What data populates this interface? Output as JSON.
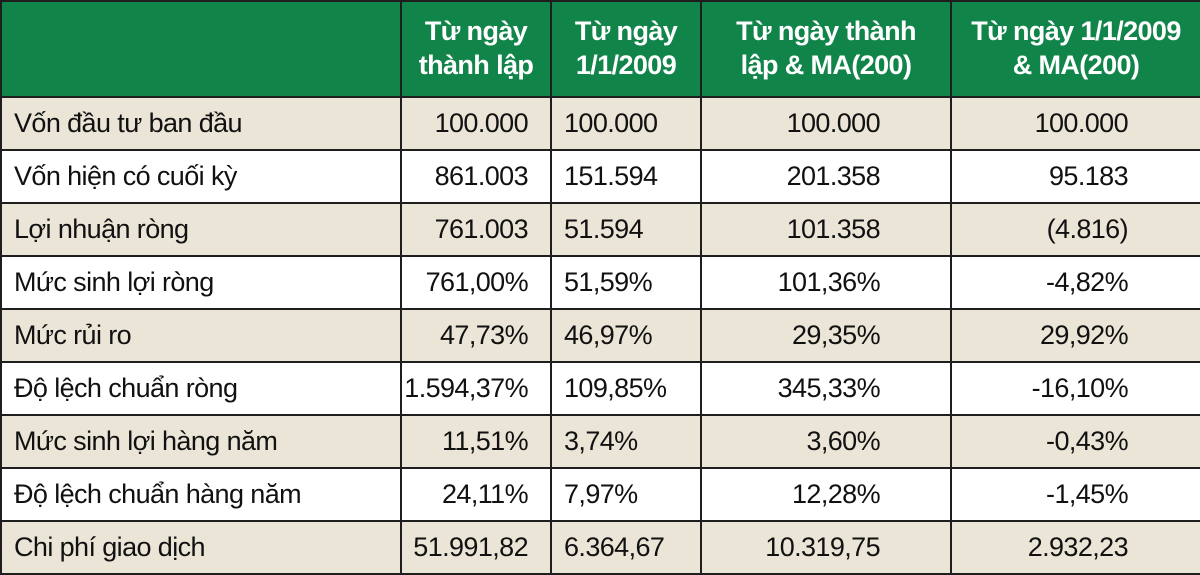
{
  "chart_data": {
    "type": "table",
    "columns": [
      [
        "Từ ngày",
        "thành lập"
      ],
      [
        "Từ ngày",
        "1/1/2009"
      ],
      [
        "Từ ngày thành",
        "lập & MA(200)"
      ],
      [
        "Từ ngày 1/1/2009",
        "& MA(200)"
      ]
    ],
    "rows": [
      {
        "label": "Vốn đầu tư ban đầu",
        "values": [
          "100.000",
          "100.000",
          "100.000",
          "100.000"
        ]
      },
      {
        "label": "Vốn hiện có cuối kỳ",
        "values": [
          "861.003",
          "151.594",
          "201.358",
          "95.183"
        ]
      },
      {
        "label": "Lợi nhuận ròng",
        "values": [
          "761.003",
          "51.594",
          "101.358",
          "(4.816)"
        ]
      },
      {
        "label": "Mức sinh lợi ròng",
        "values": [
          "761,00%",
          "51,59%",
          "101,36%",
          "-4,82%"
        ]
      },
      {
        "label": "Mức rủi ro",
        "values": [
          "47,73%",
          "46,97%",
          "29,35%",
          "29,92%"
        ]
      },
      {
        "label": "Độ lệch chuẩn ròng",
        "values": [
          "1.594,37%",
          "109,85%",
          "345,33%",
          "-16,10%"
        ]
      },
      {
        "label": "Mức sinh lợi hàng năm",
        "values": [
          "11,51%",
          "3,74%",
          "3,60%",
          "-0,43%"
        ]
      },
      {
        "label": "Độ lệch chuẩn hàng năm",
        "values": [
          "24,11%",
          "7,97%",
          "12,28%",
          "-1,45%"
        ]
      },
      {
        "label": "Chi phí giao dịch",
        "values": [
          "51.991,82",
          "6.364,67",
          "10.319,75",
          "2.932,23"
        ]
      }
    ],
    "colors": {
      "header_bg": "#11844a",
      "header_text": "#ffffff",
      "row_alt_bg": "#ebe5d7",
      "row_bg": "#ffffff",
      "border": "#1e1e1e"
    }
  }
}
